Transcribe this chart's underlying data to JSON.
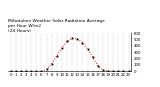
{
  "title": "Milwaukee Weather Solar Radiation Average\nper Hour W/m2\n(24 Hours)",
  "hours": [
    0,
    1,
    2,
    3,
    4,
    5,
    6,
    7,
    8,
    9,
    10,
    11,
    12,
    13,
    14,
    15,
    16,
    17,
    18,
    19,
    20,
    21,
    22,
    23
  ],
  "values": [
    0,
    0,
    0,
    0,
    0,
    0,
    2,
    30,
    120,
    240,
    370,
    470,
    520,
    510,
    450,
    350,
    220,
    90,
    20,
    2,
    0,
    0,
    0,
    0
  ],
  "line_color": "red",
  "marker_color": "black",
  "background_color": "#ffffff",
  "ylim": [
    0,
    600
  ],
  "xlim": [
    -0.5,
    23.5
  ],
  "title_fontsize": 3.2,
  "tick_fontsize": 2.8,
  "grid_color": "#bbbbbb",
  "yticks": [
    0,
    100,
    200,
    300,
    400,
    500,
    600
  ]
}
